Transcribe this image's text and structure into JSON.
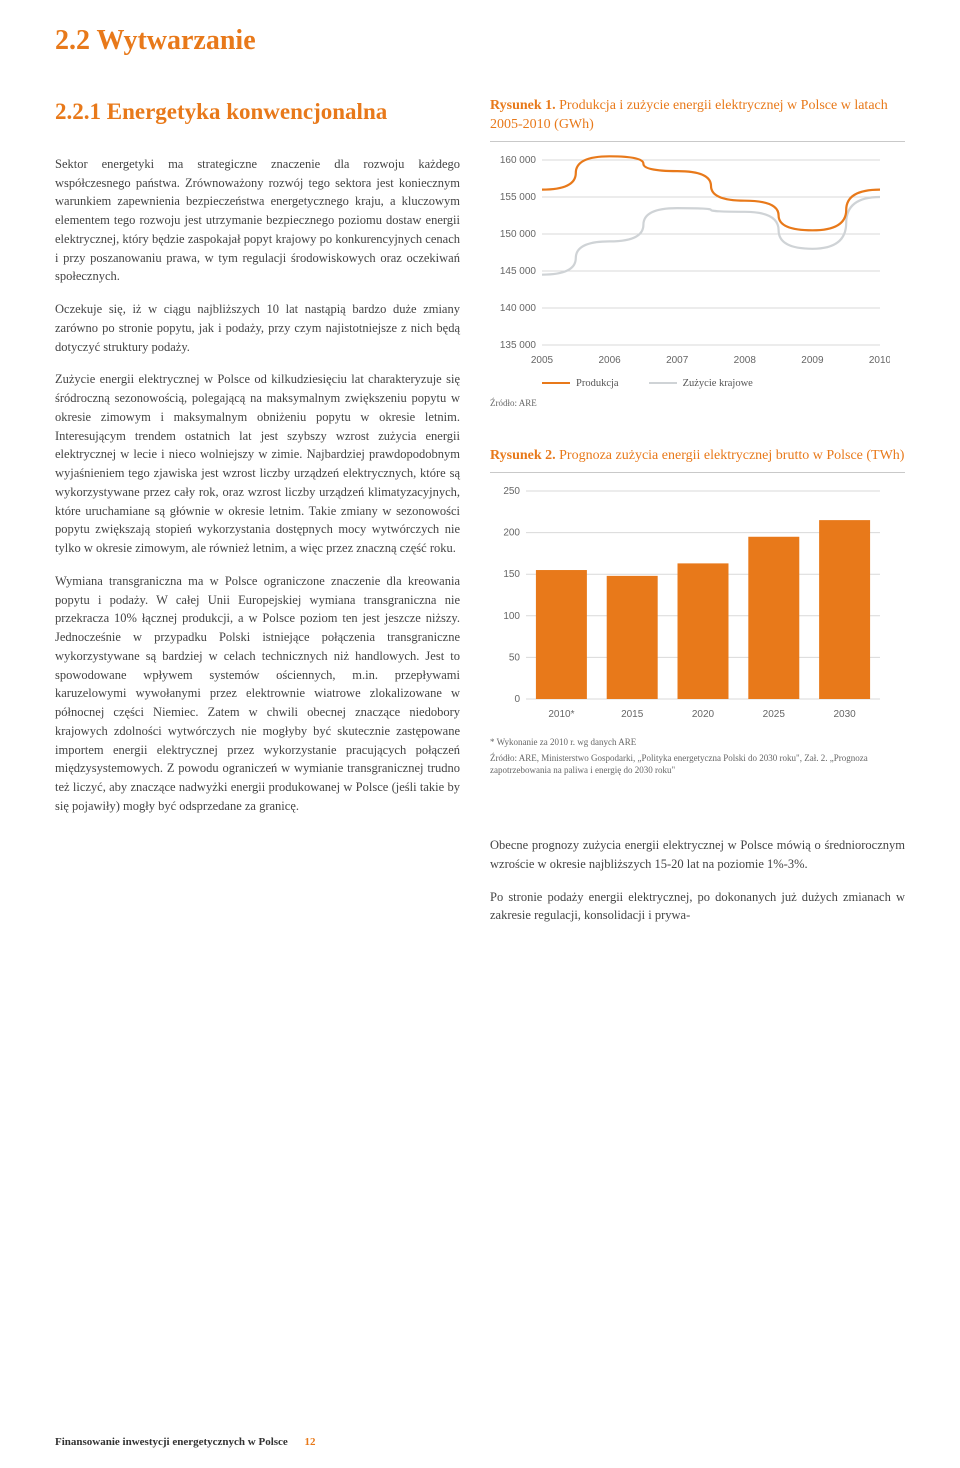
{
  "section_title": "2.2 Wytwarzanie",
  "left": {
    "subsection_title": "2.2.1 Energetyka konwencjonalna",
    "p1": "Sektor energetyki ma strategiczne znaczenie dla rozwoju każdego współczesnego państwa. Zrównoważony rozwój tego sektora jest koniecznym warunkiem zapewnienia bezpieczeństwa energetycznego kraju, a kluczowym elementem tego rozwoju jest utrzymanie bezpiecznego poziomu dostaw energii elektrycznej, który będzie zaspokajał popyt krajowy po konkurencyjnych cenach i przy poszanowaniu prawa, w tym regulacji środowiskowych oraz oczekiwań społecznych.",
    "p2": "Oczekuje się, iż w ciągu najbliższych 10 lat nastąpią bardzo duże zmiany zarówno po stronie popytu, jak i podaży, przy czym najistotniejsze z nich będą dotyczyć struktury podaży.",
    "p3": "Zużycie energii elektrycznej w Polsce od kilkudziesięciu lat charakteryzuje się śródroczną sezonowością, polegającą na maksymalnym zwiększeniu popytu w okresie zimowym i maksymalnym obniżeniu popytu w okresie letnim. Interesującym trendem ostatnich lat jest szybszy wzrost zużycia energii elektrycznej w lecie i nieco wolniejszy w zimie. Najbardziej prawdopodobnym wyjaśnieniem tego zjawiska jest wzrost liczby urządzeń elektrycznych, które są wykorzystywane przez cały rok, oraz wzrost liczby urządzeń klimatyzacyjnych, które uruchamiane są głównie w okresie letnim. Takie zmiany w sezonowości popytu zwiększają stopień wykorzystania dostępnych mocy wytwórczych nie tylko w okresie zimowym, ale również letnim, a więc przez znaczną część roku.",
    "p4": "Wymiana transgraniczna ma w Polsce ograniczone znaczenie dla kreowania popytu i podaży. W całej Unii Europejskiej wymiana transgraniczna nie przekracza 10% łącznej produkcji, a w Polsce poziom ten jest jeszcze niższy. Jednocześnie w przypadku Polski istniejące połączenia transgraniczne wykorzystywane są bardziej w celach technicznych niż handlowych. Jest to spowodowane wpływem systemów ościennych, m.in. przepływami karuzelowymi wywołanymi przez elektrownie wiatrowe zlokalizowane w północnej części Niemiec. Zatem w chwili obecnej znaczące niedobory krajowych zdolności wytwórczych nie mogłyby być skutecznie zastępowane importem energii elektrycznej przez wykorzystanie pracujących połączeń międzysystemowych. Z powodu ograniczeń w wymianie transgranicznej trudno też liczyć, aby znaczące nadwyżki energii produkowanej w Polsce (jeśli takie by się pojawiły) mogły być odsprzedane za granicę."
  },
  "right": {
    "chart1": {
      "caption_lead": "Rysunek 1.",
      "caption_rest": " Produkcja i zużycie energii elektrycznej w Polsce w latach 2005-2010 (GWh)",
      "type": "line",
      "ylim": [
        135000,
        160000
      ],
      "y_ticks": [
        "160 000",
        "155 000",
        "150 000",
        "145 000",
        "140 000",
        "135 000"
      ],
      "x_labels": [
        "2005",
        "2006",
        "2007",
        "2008",
        "2009",
        "2010"
      ],
      "series": [
        {
          "name": "Produkcja",
          "color": "#e8791a",
          "values": [
            156000,
            160500,
            158500,
            154500,
            150500,
            156000
          ]
        },
        {
          "name": "Zużycie krajowe",
          "color": "#cfd3d6",
          "values": [
            144500,
            149000,
            153500,
            153000,
            148000,
            155000
          ]
        }
      ],
      "grid_color": "#d9d9d9",
      "source": "Źródło: ARE"
    },
    "chart2": {
      "caption_lead": "Rysunek 2.",
      "caption_rest": " Prognoza zużycia energii elektrycznej brutto w Polsce (TWh)",
      "type": "bar",
      "ylim": [
        0,
        250
      ],
      "y_ticks": [
        "250",
        "200",
        "150",
        "100",
        "50",
        "0"
      ],
      "x_labels": [
        "2010*",
        "2015",
        "2020",
        "2025",
        "2030"
      ],
      "values": [
        155,
        148,
        163,
        195,
        215
      ],
      "bar_color": "#e8791a",
      "grid_color": "#d9d9d9",
      "note": "* Wykonanie za 2010 r. wg danych ARE",
      "source": "Źródło: ARE, Ministerstwo Gospodarki, „Polityka energetyczna Polski do 2030 roku\", Zał. 2. „Prognoza zapotrzebowania na paliwa i energię do 2030 roku\""
    },
    "p_bottom": "Obecne prognozy zużycia energii elektrycznej w Polsce mówią o średniorocznym wzroście w okresie najbliższych 15-20 lat na poziomie 1%-3%.",
    "p_bottom2": "Po stronie podaży energii elektrycznej, po dokonanych już dużych zmianach w zakresie regulacji, konsolidacji i prywa-"
  },
  "footer": {
    "text": "Finansowanie inwestycji energetycznych w Polsce",
    "page": "12"
  }
}
